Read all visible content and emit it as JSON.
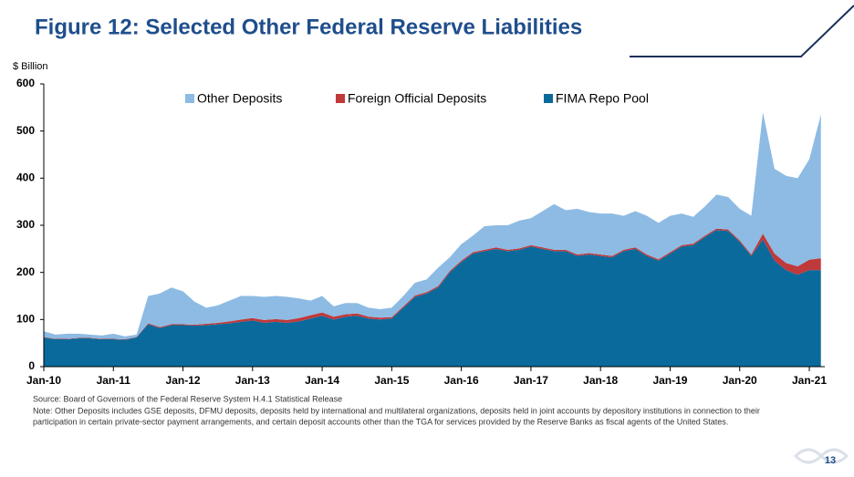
{
  "chart_data": {
    "type": "stacked-area",
    "title": "Figure 12: Selected Other Federal Reserve Liabilities",
    "y_label": "$ Billion",
    "categories": [
      "Jan-10",
      null,
      null,
      null,
      null,
      null,
      "Jan-11",
      null,
      null,
      null,
      null,
      null,
      "Jan-12",
      null,
      null,
      null,
      null,
      null,
      "Jan-13",
      null,
      null,
      null,
      null,
      null,
      "Jan-14",
      null,
      null,
      null,
      null,
      null,
      "Jan-15",
      null,
      null,
      null,
      null,
      null,
      "Jan-16",
      null,
      null,
      null,
      null,
      null,
      "Jan-17",
      null,
      null,
      null,
      null,
      null,
      "Jan-18",
      null,
      null,
      null,
      null,
      null,
      "Jan-19",
      null,
      null,
      null,
      null,
      null,
      "Jan-20",
      null,
      null,
      null,
      null,
      null,
      "Jan-21",
      null
    ],
    "series": [
      {
        "name": "Other Deposits",
        "color": "#8dbbe3",
        "values": [
          12,
          9,
          11,
          9,
          7,
          7,
          11,
          6,
          5,
          58,
          71,
          78,
          70,
          49,
          34,
          37,
          44,
          50,
          47,
          49,
          49,
          49,
          42,
          31,
          35,
          22,
          24,
          22,
          19,
          18,
          20,
          22,
          27,
          27,
          39,
          29,
          35,
          35,
          50,
          47,
          52,
          59,
          57,
          77,
          97,
          84,
          97,
          87,
          87,
          90,
          72,
          77,
          82,
          77,
          77,
          67,
          57,
          62,
          72,
          69,
          67,
          82,
          258,
          180,
          185,
          187,
          213,
          305
        ]
      },
      {
        "name": "Foreign Official Deposits",
        "color": "#c0393b",
        "values": [
          1,
          1,
          1,
          1,
          1,
          1,
          1,
          1,
          1,
          2,
          2,
          2,
          2,
          2,
          3,
          3,
          4,
          5,
          5,
          6,
          6,
          6,
          7,
          7,
          7,
          6,
          5,
          5,
          4,
          4,
          3,
          3,
          3,
          3,
          3,
          3,
          3,
          3,
          3,
          3,
          3,
          3,
          3,
          3,
          3,
          3,
          3,
          3,
          3,
          3,
          3,
          3,
          3,
          3,
          3,
          3,
          3,
          3,
          3,
          3,
          3,
          3,
          12,
          15,
          15,
          18,
          22,
          25
        ]
      },
      {
        "name": "FIMA Repo Pool",
        "color": "#0b6a9c",
        "values": [
          62,
          58,
          58,
          60,
          60,
          58,
          58,
          57,
          62,
          90,
          82,
          88,
          88,
          87,
          88,
          90,
          92,
          95,
          98,
          93,
          95,
          93,
          96,
          102,
          108,
          100,
          106,
          108,
          102,
          100,
          102,
          125,
          148,
          155,
          168,
          200,
          222,
          240,
          245,
          250,
          245,
          248,
          255,
          250,
          245,
          245,
          235,
          238,
          235,
          232,
          245,
          250,
          235,
          225,
          240,
          255,
          258,
          275,
          290,
          288,
          265,
          235,
          270,
          225,
          205,
          195,
          205,
          205
        ]
      }
    ],
    "ylim": [
      0,
      600
    ],
    "yticks": [
      0,
      100,
      200,
      300,
      400,
      500,
      600
    ],
    "legend": "top",
    "source": "Source: Board of Governors of the Federal Reserve System H.4.1 Statistical Release",
    "notes": [
      "Note: Other Deposits includes GSE deposits, DFMU deposits, deposits held by international and multilateral organizations, deposits held in joint accounts by depository institutions in connection to their",
      "participation in certain private-sector payment arrangements, and certain deposit accounts other than the TGA for services provided by the Reserve Banks as fiscal agents of the United States."
    ]
  },
  "page_number": "13"
}
